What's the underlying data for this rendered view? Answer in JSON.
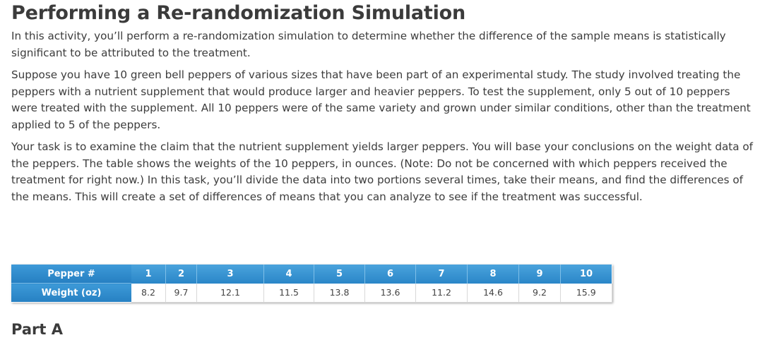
{
  "title": "Performing a Re-randomization Simulation",
  "paragraphs": [
    "In this activity, you’ll perform a re-randomization simulation to determine whether the difference of the sample means is statistically significant to be attributed to the treatment.",
    "Suppose you have 10 green bell peppers of various sizes that have been part of an experimental study. The study involved treating the peppers with a nutrient supplement that would produce larger and heavier peppers. To test the supplement, only 5 out of 10 peppers were treated with the supplement. All 10 peppers were of the same variety and grown under similar conditions, other than the treatment applied to 5 of the peppers.",
    "Your task is to examine the claim that the nutrient supplement yields larger peppers. You will base your conclusions on the weight data of the peppers. The table shows the weights of the 10 peppers, in ounces. (Note: Do not be concerned with which peppers received the treatment for right now.) In this task, you’ll divide the data into two portions several times, take their means, and find the differences of the means. This will create a set of differences of means that you can analyze to see if the treatment was successful."
  ],
  "table": {
    "row1_label": "Pepper #",
    "row2_label": "Weight (oz)",
    "peppers": [
      "1",
      "2",
      "3",
      "4",
      "5",
      "6",
      "7",
      "8",
      "9",
      "10"
    ],
    "weights": [
      "8.2",
      "9.7",
      "12.1",
      "11.5",
      "13.8",
      "13.6",
      "11.2",
      "14.6",
      "9.2",
      "15.9"
    ]
  },
  "section_heading": "Part A",
  "colors": {
    "header_blue": "#2a86c8",
    "text": "#3c3c3c"
  }
}
